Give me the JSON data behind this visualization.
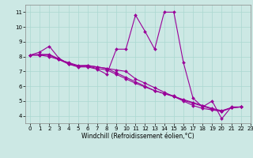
{
  "xlabel": "Windchill (Refroidissement éolien,°C)",
  "background_color": "#cce8e4",
  "line_color": "#990099",
  "xlim": [
    -0.5,
    23
  ],
  "ylim": [
    3.5,
    11.5
  ],
  "yticks": [
    4,
    5,
    6,
    7,
    8,
    9,
    10,
    11
  ],
  "xticks": [
    0,
    1,
    2,
    3,
    4,
    5,
    6,
    7,
    8,
    9,
    10,
    11,
    12,
    13,
    14,
    15,
    16,
    17,
    18,
    19,
    20,
    21,
    22,
    23
  ],
  "series": [
    [
      8.1,
      8.3,
      8.7,
      7.9,
      7.5,
      7.3,
      7.3,
      7.15,
      6.8,
      8.5,
      8.5,
      10.8,
      9.7,
      8.5,
      11.0,
      11.0,
      7.6,
      5.2,
      4.6,
      5.0,
      3.8,
      4.6,
      4.6
    ],
    [
      8.1,
      8.1,
      8.1,
      7.8,
      7.6,
      7.4,
      7.4,
      7.3,
      7.2,
      7.1,
      7.0,
      6.5,
      6.2,
      5.9,
      5.6,
      5.3,
      5.0,
      4.7,
      4.5,
      4.4,
      4.3,
      4.55,
      4.6
    ],
    [
      8.1,
      8.1,
      8.0,
      7.8,
      7.5,
      7.35,
      7.4,
      7.3,
      7.2,
      6.9,
      6.6,
      6.3,
      6.0,
      5.7,
      5.5,
      5.3,
      5.1,
      4.9,
      4.7,
      4.5,
      4.35,
      4.55,
      4.6
    ],
    [
      8.1,
      8.15,
      8.15,
      7.85,
      7.55,
      7.35,
      7.35,
      7.2,
      7.1,
      6.8,
      6.5,
      6.2,
      5.95,
      5.7,
      5.5,
      5.35,
      5.05,
      4.85,
      4.65,
      4.45,
      4.3,
      4.55,
      4.6
    ]
  ],
  "marker": "D",
  "markersize": 2.0,
  "linewidth": 0.8,
  "tick_fontsize": 5.0,
  "xlabel_fontsize": 5.5,
  "grid_color": "#aad8d0",
  "spine_color": "#888888"
}
